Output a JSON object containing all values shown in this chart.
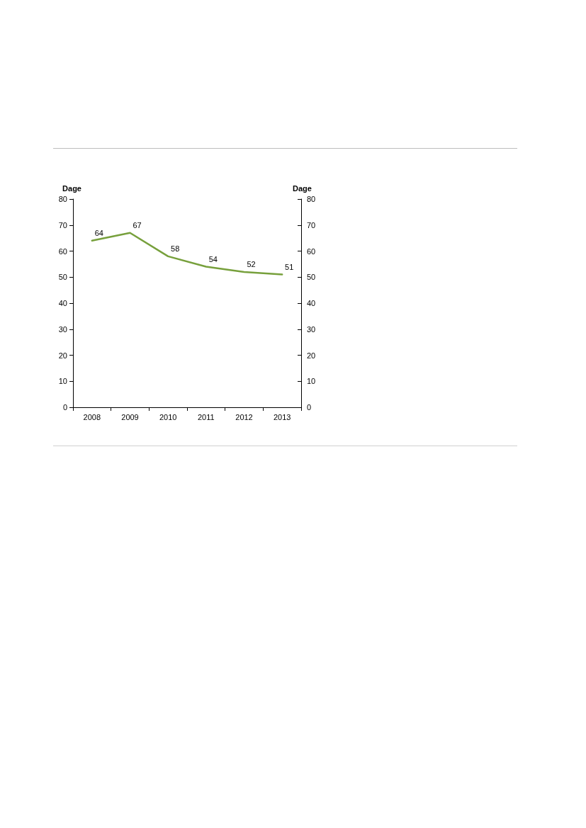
{
  "chart_data": {
    "type": "line",
    "ylabel": "Dage",
    "y2label": "Dage",
    "categories": [
      "2008",
      "2009",
      "2010",
      "2011",
      "2012",
      "2013"
    ],
    "series": [
      {
        "color": "#77a03c",
        "values": [
          64,
          67,
          58,
          54,
          52,
          51
        ]
      }
    ],
    "ylim": [
      0,
      80
    ],
    "yticks": [
      0,
      10,
      20,
      30,
      40,
      50,
      60,
      70,
      80
    ],
    "y2lim": [
      0,
      80
    ],
    "y2ticks": [
      0,
      10,
      20,
      30,
      40,
      50,
      60,
      70,
      80
    ],
    "data_labels": true,
    "grid": false,
    "marker": "none",
    "line_style": "solid"
  }
}
